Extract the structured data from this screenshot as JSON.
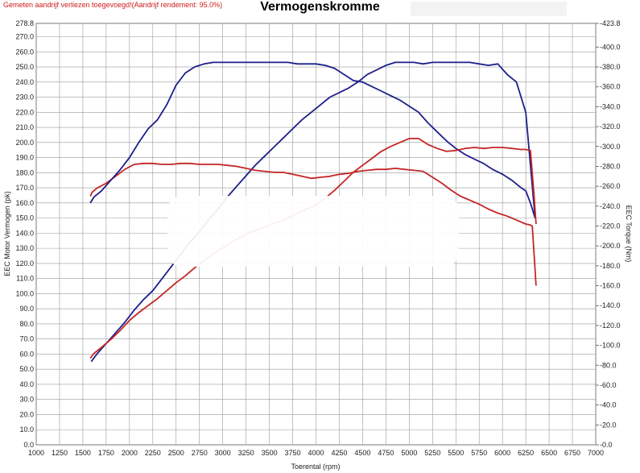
{
  "header": {
    "notice": "Gemeten aandrijf verliezen toegevoegd!(Aandrijf rendement: 95.0%)",
    "title": "Vermogenskromme"
  },
  "chart_data": {
    "type": "line",
    "title": "Vermogenskromme",
    "xlabel": "Toerental (rpm)",
    "ylabel_left": "EEC Motor Vermogen (pk)",
    "ylabel_right": "EEC Torque (Nm)",
    "xlim": [
      1000,
      7000
    ],
    "ylim_left": [
      0,
      278.8
    ],
    "ylim_right": [
      0,
      423.8
    ],
    "grid": true,
    "x_ticks": [
      1000,
      1250,
      1500,
      1750,
      2000,
      2250,
      2500,
      2750,
      3000,
      3250,
      3500,
      3750,
      4000,
      4250,
      4500,
      4750,
      5000,
      5250,
      5500,
      5750,
      6000,
      6250,
      6500,
      6750,
      7000
    ],
    "y_left_ticks": [
      "0.0",
      "10.0",
      "20.0",
      "30.0",
      "40.0",
      "50.0",
      "60.0",
      "70.0",
      "80.0",
      "90.0",
      "100.0",
      "110.0",
      "120.0",
      "130.0",
      "140.0",
      "150.0",
      "160.0",
      "170.0",
      "180.0",
      "190.0",
      "200.0",
      "210.0",
      "220.0",
      "230.0",
      "240.0",
      "250.0",
      "260.0",
      "270.0",
      "278.8"
    ],
    "y_left_values": [
      0,
      10,
      20,
      30,
      40,
      50,
      60,
      70,
      80,
      90,
      100,
      110,
      120,
      130,
      140,
      150,
      160,
      170,
      180,
      190,
      200,
      210,
      220,
      230,
      240,
      250,
      260,
      270,
      278.8
    ],
    "y_right_ticks": [
      "0.0",
      "20.0",
      "40.0",
      "60.0",
      "80.0",
      "100.0",
      "120.0",
      "140.0",
      "160.0",
      "180.0",
      "200.0",
      "220.0",
      "240.0",
      "260.0",
      "280.0",
      "300.0",
      "320.0",
      "340.0",
      "360.0",
      "380.0",
      "400.0",
      "423.8"
    ],
    "y_right_values": [
      0,
      20,
      40,
      60,
      80,
      100,
      120,
      140,
      160,
      180,
      200,
      220,
      240,
      260,
      280,
      300,
      320,
      340,
      360,
      380,
      400,
      423.8
    ],
    "series": [
      {
        "axis": "left",
        "color": "#1c1f8a",
        "x": [
          1590,
          1650,
          1750,
          1850,
          1950,
          2050,
          2150,
          2250,
          2350,
          2450,
          2550,
          2650,
          2750,
          2850,
          2950,
          3050,
          3150,
          3250,
          3350,
          3450,
          3550,
          3650,
          3750,
          3850,
          3950,
          4050,
          4150,
          4250,
          4350,
          4450,
          4550,
          4650,
          4750,
          4850,
          4950,
          5050,
          5150,
          5250,
          5350,
          5450,
          5550,
          5650,
          5750,
          5850,
          5950,
          6050,
          6150,
          6250,
          6300,
          6350
        ],
        "y": [
          55,
          60,
          67,
          74,
          81,
          89,
          96,
          102,
          110,
          118,
          126,
          134,
          141,
          149,
          156,
          164,
          171,
          178,
          185,
          191,
          197,
          203,
          209,
          215,
          220,
          225,
          230,
          233,
          236,
          240,
          245,
          248,
          251,
          253,
          253,
          253,
          252,
          253,
          253,
          253,
          253,
          253,
          252,
          251,
          252,
          245,
          240,
          220,
          185,
          150
        ]
      },
      {
        "axis": "right",
        "color": "#c42525",
        "x": [
          1580,
          1600,
          1650,
          1750,
          1850,
          1950,
          2050,
          2150,
          2250,
          2350,
          2450,
          2550,
          2650,
          2750,
          2850,
          2950,
          3050,
          3150,
          3250,
          3350,
          3450,
          3550,
          3650,
          3750,
          3850,
          3950,
          4050,
          4150,
          4250,
          4350,
          4450,
          4550,
          4650,
          4750,
          4850,
          4950,
          5050,
          5150,
          5250,
          5350,
          5450,
          5550,
          5650,
          5750,
          5850,
          5950,
          6050,
          6150,
          6250,
          6300,
          6320,
          6360
        ],
        "y": [
          250,
          254,
          258,
          263,
          270,
          277,
          282,
          283,
          283,
          282,
          282,
          283,
          283,
          282,
          282,
          282,
          281,
          280,
          278,
          276,
          275,
          274,
          274,
          272,
          270,
          268,
          269,
          270,
          272,
          273,
          275,
          276,
          277,
          277,
          278,
          277,
          276,
          275,
          269,
          263,
          256,
          250,
          246,
          242,
          237,
          233,
          230,
          226,
          222,
          221,
          220,
          160
        ]
      },
      {
        "axis": "left",
        "color": "#1c1f8a",
        "x": [
          1580,
          1620,
          1700,
          1800,
          1900,
          2000,
          2100,
          2200,
          2300,
          2400,
          2500,
          2600,
          2700,
          2800,
          2900,
          3000,
          3100,
          3200,
          3300,
          3400,
          3500,
          3600,
          3700,
          3800,
          3900,
          4000,
          4100,
          4200,
          4300,
          4400,
          4500,
          4600,
          4700,
          4800,
          4900,
          5000,
          5100,
          5200,
          5300,
          5400,
          5500,
          5600,
          5700,
          5800,
          5900,
          6000,
          6100,
          6200,
          6250,
          6300,
          6350
        ],
        "y": [
          160,
          164,
          168,
          175,
          182,
          190,
          200,
          209,
          215,
          225,
          238,
          246,
          250,
          252,
          253,
          253,
          253,
          253,
          253,
          253,
          253,
          253,
          253,
          252,
          252,
          252,
          251,
          249,
          245,
          241,
          240,
          237,
          234,
          231,
          228,
          224,
          220,
          213,
          207,
          201,
          196,
          192,
          189,
          186,
          182,
          179,
          175,
          170,
          168,
          160,
          150
        ]
      },
      {
        "axis": "right",
        "color": "#c42525",
        "x": [
          1580,
          1620,
          1700,
          1800,
          1900,
          2000,
          2100,
          2200,
          2300,
          2400,
          2500,
          2600,
          2700,
          2800,
          2900,
          3000,
          3100,
          3200,
          3300,
          3400,
          3500,
          3600,
          3700,
          3800,
          3900,
          4000,
          4100,
          4200,
          4300,
          4400,
          4500,
          4600,
          4700,
          4800,
          4900,
          5000,
          5100,
          5200,
          5300,
          5400,
          5500,
          5600,
          5700,
          5800,
          5900,
          6000,
          6100,
          6200,
          6250,
          6300,
          6340,
          6360
        ],
        "y": [
          87,
          92,
          98,
          106,
          115,
          125,
          133,
          140,
          147,
          155,
          163,
          170,
          178,
          185,
          192,
          198,
          204,
          209,
          214,
          217,
          221,
          224,
          228,
          233,
          237,
          241,
          248,
          256,
          265,
          274,
          281,
          288,
          295,
          300,
          304,
          308,
          308,
          302,
          298,
          295,
          296,
          298,
          299,
          298,
          299,
          299,
          298,
          297,
          297,
          296,
          250,
          222
        ]
      }
    ]
  }
}
